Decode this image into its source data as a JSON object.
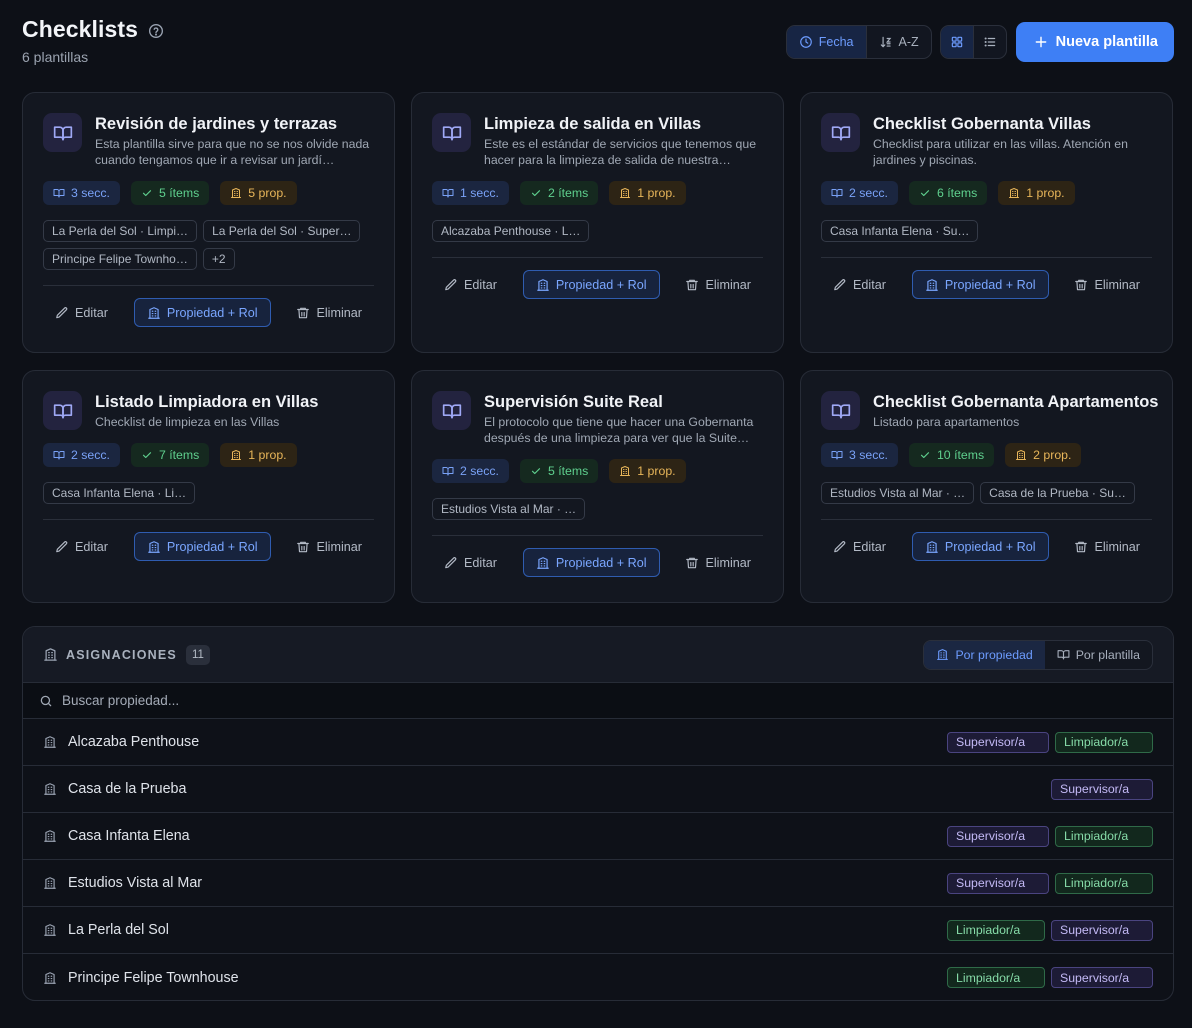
{
  "header": {
    "title": "Checklists",
    "subtitle": "6 plantillas",
    "sort_date": "Fecha",
    "sort_az": "A-Z",
    "new_button": "Nueva plantilla"
  },
  "colors": {
    "accent": "#3e7ff5",
    "background": "#0d1017",
    "card": "#131720"
  },
  "cards": [
    {
      "title": "Revisión de jardines y terrazas",
      "description": "Esta plantilla sirve para que no se nos olvide nada cuando tengamos que ir a revisar un jardí…",
      "sections": "3 secc.",
      "items": "5 ítems",
      "props": "5 prop.",
      "tags": [
        "La Perla del Sol · Limpi…",
        "La Perla del Sol · Super…",
        "Principe Felipe Townho…",
        "+2"
      ]
    },
    {
      "title": "Limpieza de salida en Villas",
      "description": "Este es el estándar de servicios que tenemos que hacer para la limpieza de salida de nuestra…",
      "sections": "1 secc.",
      "items": "2 ítems",
      "props": "1 prop.",
      "tags": [
        "Alcazaba Penthouse · L…"
      ]
    },
    {
      "title": "Checklist Gobernanta Villas",
      "description": "Checklist para utilizar en las villas. Atención en jardines y piscinas.",
      "sections": "2 secc.",
      "items": "6 ítems",
      "props": "1 prop.",
      "tags": [
        "Casa Infanta Elena · Su…"
      ]
    },
    {
      "title": "Listado Limpiadora en Villas",
      "description": "Checklist de limpieza en las Villas",
      "sections": "2 secc.",
      "items": "7 ítems",
      "props": "1 prop.",
      "tags": [
        "Casa Infanta Elena · Li…"
      ]
    },
    {
      "title": "Supervisión Suite Real",
      "description": "El protocolo que tiene que hacer una Gobernanta después de una limpieza para ver que la Suite…",
      "sections": "2 secc.",
      "items": "5 ítems",
      "props": "1 prop.",
      "tags": [
        "Estudios Vista al Mar · …"
      ]
    },
    {
      "title": "Checklist Gobernanta Apartamentos",
      "description": "Listado para apartamentos",
      "sections": "3 secc.",
      "items": "10 ítems",
      "props": "2 prop.",
      "tags": [
        "Estudios Vista al Mar · …",
        "Casa de la Prueba · Su…"
      ]
    }
  ],
  "card_actions": {
    "edit": "Editar",
    "assign": "Propiedad + Rol",
    "delete": "Eliminar"
  },
  "assignments": {
    "title": "ASIGNACIONES",
    "count": "11",
    "toggle_property": "Por propiedad",
    "toggle_template": "Por plantilla",
    "search_placeholder": "Buscar propiedad...",
    "rows": [
      {
        "name": "Alcazaba Penthouse",
        "roles": [
          "Supervisor/a",
          "Limpiador/a"
        ]
      },
      {
        "name": "Casa de la Prueba",
        "roles": [
          "Supervisor/a"
        ]
      },
      {
        "name": "Casa Infanta Elena",
        "roles": [
          "Supervisor/a",
          "Limpiador/a"
        ]
      },
      {
        "name": "Estudios Vista al Mar",
        "roles": [
          "Supervisor/a",
          "Limpiador/a"
        ]
      },
      {
        "name": "La Perla del Sol",
        "roles": [
          "Limpiador/a",
          "Supervisor/a"
        ]
      },
      {
        "name": "Principe Felipe Townhouse",
        "roles": [
          "Limpiador/a",
          "Supervisor/a"
        ]
      }
    ]
  },
  "icons": {
    "help": "help-circle-icon",
    "clock": "clock-icon",
    "sort": "sort-icon",
    "grid": "grid-icon",
    "list": "list-icon",
    "plus": "plus-icon",
    "book": "book-open-icon",
    "check": "check-icon",
    "building": "building-icon",
    "pencil": "pencil-icon",
    "trash": "trash-icon",
    "search": "search-icon"
  }
}
